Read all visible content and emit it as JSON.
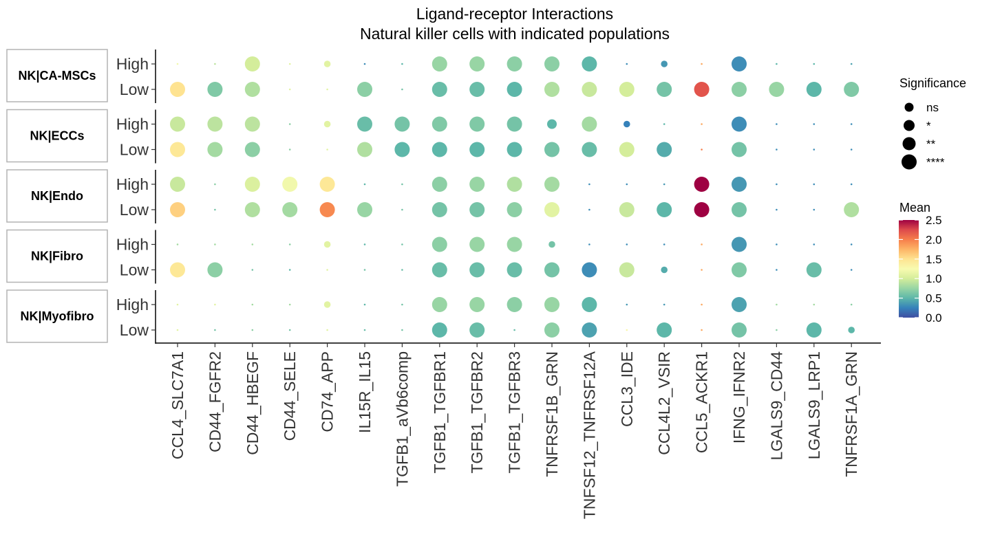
{
  "chart_data": {
    "type": "scatter",
    "title": "Ligand-receptor Interactions",
    "subtitle": "Natural killer cells with indicated populations",
    "x": [
      "CCL4_SLC7A1",
      "CD44_FGFR2",
      "CD44_HBEGF",
      "CD44_SELE",
      "CD74_APP",
      "IL15R_IL15",
      "TGFB1_aVb6comp",
      "TGFB1_TGFBR1",
      "TGFB1_TGFBR2",
      "TGFB1_TGFBR3",
      "TNFRSF1B_GRN",
      "TNFSF12_TNFRSF12A",
      "CCL3_IDE",
      "CCL4L2_VSIR",
      "CCL5_ACKR1",
      "IFNG_IFNR2",
      "LGALS9_CD44",
      "LGALS9_LRP1",
      "TNFRSF1A_GRN"
    ],
    "y_levels": [
      "High",
      "Low"
    ],
    "facets": [
      {
        "label": "NK|CA-MSCs",
        "rows": [
          {
            "name": "High",
            "mean": [
              1.2,
              0.9,
              1.0,
              1.1,
              1.1,
              0.3,
              0.5,
              0.75,
              0.75,
              0.7,
              0.7,
              0.5,
              0.3,
              0.35,
              1.8,
              0.3,
              0.5,
              0.5,
              0.4
            ],
            "sig": [
              0,
              0,
              3,
              0,
              1,
              0,
              0,
              3,
              3,
              3,
              3,
              3,
              0,
              1,
              0,
              3,
              0,
              0,
              0
            ]
          },
          {
            "name": "Low",
            "mean": [
              1.5,
              0.65,
              0.85,
              1.1,
              1.1,
              0.7,
              0.6,
              0.55,
              0.55,
              0.5,
              0.85,
              0.95,
              1.0,
              0.6,
              2.2,
              0.7,
              0.75,
              0.5,
              0.65
            ],
            "sig": [
              3,
              3,
              3,
              0,
              0,
              3,
              0,
              3,
              3,
              3,
              3,
              3,
              3,
              3,
              3,
              3,
              3,
              3,
              3
            ]
          }
        ]
      },
      {
        "label": "NK|ECCs",
        "rows": [
          {
            "name": "High",
            "mean": [
              0.95,
              0.9,
              0.9,
              0.7,
              1.1,
              0.55,
              0.6,
              0.65,
              0.65,
              0.6,
              0.5,
              0.8,
              0.25,
              0.5,
              1.8,
              0.3,
              0.3,
              0.3,
              0.3
            ],
            "sig": [
              3,
              3,
              3,
              0,
              1,
              3,
              3,
              3,
              3,
              3,
              2,
              3,
              1,
              0,
              0,
              3,
              0,
              0,
              0
            ]
          },
          {
            "name": "Low",
            "mean": [
              1.45,
              0.8,
              0.7,
              0.7,
              1.1,
              0.85,
              0.5,
              0.5,
              0.5,
              0.5,
              0.6,
              0.55,
              1.0,
              0.45,
              2.0,
              0.6,
              0.3,
              0.3,
              0.3
            ],
            "sig": [
              3,
              3,
              3,
              0,
              0,
              3,
              3,
              3,
              3,
              3,
              3,
              3,
              3,
              3,
              0,
              3,
              0,
              0,
              0
            ]
          }
        ]
      },
      {
        "label": "NK|Endo",
        "rows": [
          {
            "name": "High",
            "mean": [
              0.95,
              0.7,
              1.05,
              1.2,
              1.45,
              0.5,
              0.6,
              0.7,
              0.75,
              0.85,
              0.8,
              0.3,
              0.3,
              0.35,
              2.5,
              0.35,
              0.3,
              0.3,
              0.3
            ],
            "sig": [
              3,
              0,
              3,
              3,
              3,
              0,
              0,
              3,
              3,
              3,
              3,
              0,
              0,
              0,
              3,
              3,
              0,
              0,
              0
            ]
          },
          {
            "name": "Low",
            "mean": [
              1.6,
              0.6,
              0.85,
              0.8,
              1.95,
              0.75,
              0.6,
              0.6,
              0.6,
              0.7,
              1.1,
              0.3,
              0.95,
              0.5,
              2.5,
              0.6,
              0.3,
              0.3,
              0.85
            ],
            "sig": [
              3,
              0,
              3,
              3,
              3,
              3,
              0,
              3,
              3,
              3,
              3,
              0,
              3,
              3,
              3,
              3,
              0,
              0,
              3
            ]
          }
        ]
      },
      {
        "label": "NK|Fibro",
        "rows": [
          {
            "name": "High",
            "mean": [
              0.8,
              0.8,
              0.8,
              0.7,
              1.1,
              0.5,
              0.6,
              0.7,
              0.75,
              0.75,
              0.6,
              0.3,
              0.3,
              0.3,
              1.8,
              0.35,
              0.3,
              0.3,
              0.3
            ],
            "sig": [
              0,
              0,
              0,
              0,
              1,
              0,
              0,
              3,
              3,
              3,
              1,
              0,
              0,
              0,
              0,
              3,
              0,
              0,
              0
            ]
          },
          {
            "name": "Low",
            "mean": [
              1.45,
              0.7,
              0.6,
              0.5,
              1.1,
              0.6,
              0.55,
              0.55,
              0.55,
              0.55,
              0.6,
              0.3,
              0.95,
              0.45,
              1.8,
              0.65,
              0.3,
              0.55,
              0.3
            ],
            "sig": [
              3,
              3,
              0,
              0,
              0,
              0,
              0,
              3,
              3,
              3,
              3,
              3,
              3,
              1,
              0,
              3,
              0,
              3,
              0
            ]
          }
        ]
      },
      {
        "label": "NK|Myofibro",
        "rows": [
          {
            "name": "High",
            "mean": [
              1.1,
              1.1,
              0.8,
              0.8,
              1.1,
              0.5,
              0.6,
              0.75,
              0.75,
              0.7,
              0.75,
              0.5,
              0.35,
              0.35,
              1.8,
              0.4,
              0.8,
              0.8,
              0.7
            ],
            "sig": [
              0,
              0,
              0,
              0,
              1,
              0,
              0,
              3,
              3,
              3,
              3,
              3,
              0,
              0,
              0,
              3,
              0,
              0,
              0
            ]
          },
          {
            "name": "Low",
            "mean": [
              1.1,
              0.6,
              0.7,
              0.6,
              1.1,
              0.55,
              0.6,
              0.5,
              0.55,
              0.55,
              0.7,
              0.4,
              1.3,
              0.5,
              1.8,
              0.6,
              0.7,
              0.5,
              0.5
            ],
            "sig": [
              0,
              0,
              0,
              0,
              0,
              0,
              0,
              3,
              3,
              0,
              3,
              3,
              0,
              3,
              0,
              3,
              0,
              3,
              1
            ]
          }
        ]
      }
    ],
    "size_legend": {
      "title": "Significance",
      "levels": [
        "ns",
        "*",
        "**",
        "****"
      ]
    },
    "color_legend": {
      "title": "Mean",
      "range": [
        0,
        2.5
      ],
      "ticks": [
        "2.5",
        "2.0",
        "1.5",
        "1.0",
        "0.5",
        "0.0"
      ],
      "palette": "Spectral (reversed)"
    },
    "grid": false,
    "legend": "right"
  }
}
